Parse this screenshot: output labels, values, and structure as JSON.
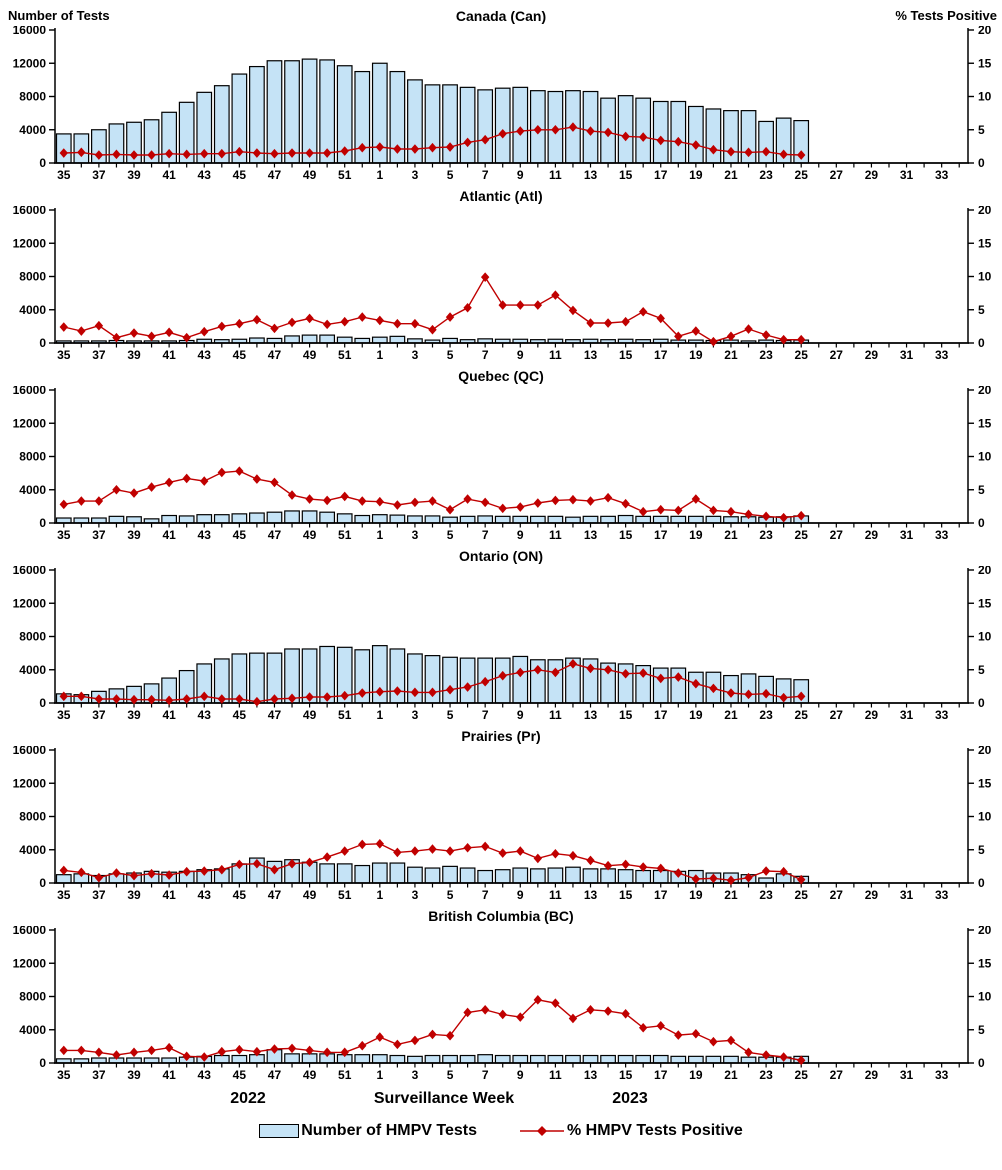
{
  "header": {
    "left_axis_title": "Number of Tests",
    "right_axis_title": "% Tests Positive"
  },
  "footer": {
    "year_left": "2022",
    "axis_title": "Surveillance Week",
    "year_right": "2023",
    "legend_tests_label": "Number of HMPV Tests",
    "legend_pct_label": "% HMPV Tests Positive"
  },
  "colors": {
    "bar_fill": "#C5E3F6",
    "bar_stroke": "#000000",
    "line": "#C00000",
    "axis": "#000000"
  },
  "chart_data": {
    "type": "bar+line",
    "x_axis_label": "Surveillance Week",
    "weeks_total": 52,
    "categories": [
      "35",
      "36",
      "37",
      "38",
      "39",
      "40",
      "41",
      "42",
      "43",
      "44",
      "45",
      "46",
      "47",
      "48",
      "49",
      "50",
      "51",
      "52",
      "1",
      "2",
      "3",
      "4",
      "5",
      "6",
      "7",
      "8",
      "9",
      "10",
      "11",
      "12",
      "13",
      "14",
      "15",
      "16",
      "17",
      "18",
      "19",
      "20",
      "21",
      "22",
      "23",
      "24",
      "25"
    ],
    "x_tick_labels": [
      "35",
      "37",
      "39",
      "41",
      "43",
      "45",
      "47",
      "49",
      "51",
      "1",
      "3",
      "5",
      "7",
      "9",
      "11",
      "13",
      "15",
      "17",
      "19",
      "21",
      "23",
      "25",
      "27",
      "29",
      "31",
      "33"
    ],
    "left_axis": {
      "title": "Number of Tests",
      "ticks": [
        0,
        4000,
        8000,
        12000,
        16000
      ],
      "max": 16000
    },
    "right_axis": {
      "title": "% Tests Positive",
      "ticks": [
        0,
        5,
        10,
        15,
        20
      ],
      "max": 20
    },
    "series_names": [
      "Number of HMPV Tests",
      "% HMPV Tests Positive"
    ],
    "panels": [
      {
        "title": "Canada (Can)",
        "tests": [
          3500,
          3500,
          4000,
          4700,
          4900,
          5200,
          6100,
          7300,
          8500,
          9300,
          10700,
          11600,
          12300,
          12300,
          12500,
          12400,
          11700,
          11000,
          12000,
          11000,
          10000,
          9400,
          9400,
          9100,
          8800,
          9000,
          9100,
          8700,
          8600,
          8700,
          8600,
          7800,
          8100,
          7800,
          7400,
          7400,
          6800,
          6500,
          6300,
          6300,
          5000,
          5400,
          5100
        ],
        "pct_positive": [
          1.5,
          1.6,
          1.2,
          1.3,
          1.2,
          1.2,
          1.4,
          1.3,
          1.4,
          1.4,
          1.7,
          1.5,
          1.4,
          1.5,
          1.5,
          1.5,
          1.8,
          2.3,
          2.4,
          2.1,
          2.1,
          2.3,
          2.4,
          3.1,
          3.5,
          4.4,
          4.8,
          5.0,
          5.0,
          5.4,
          4.8,
          4.6,
          4.0,
          3.9,
          3.4,
          3.2,
          2.7,
          2.0,
          1.7,
          1.6,
          1.7,
          1.3,
          1.2
        ]
      },
      {
        "title": "Atlantic (Atl)",
        "tests": [
          250,
          250,
          250,
          300,
          250,
          250,
          250,
          300,
          450,
          400,
          450,
          600,
          550,
          850,
          950,
          950,
          700,
          550,
          700,
          800,
          500,
          350,
          550,
          400,
          500,
          450,
          450,
          400,
          450,
          400,
          450,
          400,
          450,
          400,
          450,
          350,
          350,
          300,
          350,
          250,
          350,
          300,
          350
        ],
        "pct_positive": [
          2.4,
          1.8,
          2.6,
          0.8,
          1.5,
          1.0,
          1.6,
          0.8,
          1.7,
          2.5,
          2.9,
          3.5,
          2.2,
          3.1,
          3.7,
          2.8,
          3.2,
          3.9,
          3.4,
          2.9,
          2.9,
          2.0,
          3.9,
          5.3,
          9.9,
          5.7,
          5.7,
          5.7,
          7.2,
          4.9,
          3.0,
          3.0,
          3.2,
          4.7,
          3.7,
          1.0,
          1.8,
          0.2,
          1.0,
          2.1,
          1.2,
          0.5,
          0.5
        ]
      },
      {
        "title": "Quebec (QC)",
        "tests": [
          600,
          600,
          600,
          800,
          750,
          500,
          900,
          850,
          1000,
          1000,
          1100,
          1200,
          1300,
          1450,
          1450,
          1300,
          1100,
          900,
          1000,
          950,
          850,
          850,
          700,
          800,
          850,
          800,
          800,
          800,
          800,
          700,
          800,
          800,
          900,
          800,
          800,
          800,
          800,
          800,
          750,
          750,
          700,
          750,
          850
        ],
        "pct_positive": [
          2.8,
          3.3,
          3.3,
          5.0,
          4.5,
          5.4,
          6.1,
          6.7,
          6.3,
          7.6,
          7.8,
          6.6,
          6.1,
          4.2,
          3.6,
          3.4,
          4.0,
          3.3,
          3.2,
          2.7,
          3.1,
          3.3,
          2.0,
          3.6,
          3.1,
          2.2,
          2.4,
          3.0,
          3.4,
          3.5,
          3.3,
          3.8,
          2.9,
          1.7,
          2.0,
          1.9,
          3.6,
          1.9,
          1.7,
          1.3,
          1.0,
          0.8,
          1.1
        ]
      },
      {
        "title": "Ontario (ON)",
        "tests": [
          1100,
          1000,
          1400,
          1700,
          2000,
          2300,
          3000,
          3900,
          4700,
          5300,
          5900,
          6000,
          6000,
          6500,
          6500,
          6800,
          6700,
          6400,
          6900,
          6500,
          5900,
          5700,
          5500,
          5400,
          5400,
          5400,
          5600,
          5200,
          5200,
          5400,
          5300,
          4800,
          4700,
          4500,
          4200,
          4200,
          3700,
          3700,
          3300,
          3500,
          3200,
          2900,
          2800
        ],
        "pct_positive": [
          1.0,
          1.0,
          0.6,
          0.6,
          0.5,
          0.5,
          0.4,
          0.6,
          1.0,
          0.6,
          0.6,
          0.2,
          0.6,
          0.7,
          0.9,
          0.9,
          1.1,
          1.5,
          1.7,
          1.8,
          1.6,
          1.6,
          2.0,
          2.4,
          3.2,
          4.1,
          4.6,
          5.0,
          4.6,
          5.9,
          5.2,
          5.0,
          4.4,
          4.5,
          3.7,
          3.9,
          2.9,
          2.2,
          1.5,
          1.3,
          1.4,
          0.8,
          1.0
        ]
      },
      {
        "title": "Prairies (Pr)",
        "tests": [
          1000,
          1100,
          900,
          1100,
          1200,
          1400,
          1300,
          1400,
          1600,
          1700,
          2300,
          3000,
          2600,
          2800,
          2500,
          2300,
          2300,
          2100,
          2400,
          2400,
          1900,
          1800,
          2000,
          1800,
          1500,
          1600,
          1800,
          1700,
          1800,
          1900,
          1700,
          1700,
          1600,
          1500,
          1500,
          1400,
          1500,
          1200,
          1200,
          1000,
          600,
          1100,
          800
        ],
        "pct_positive": [
          1.9,
          1.6,
          0.8,
          1.5,
          1.1,
          1.4,
          1.2,
          1.7,
          1.8,
          2.0,
          2.8,
          2.9,
          2.0,
          2.9,
          3.1,
          3.9,
          4.8,
          5.8,
          5.9,
          4.6,
          4.8,
          5.1,
          4.8,
          5.3,
          5.5,
          4.5,
          4.8,
          3.7,
          4.4,
          4.1,
          3.4,
          2.6,
          2.8,
          2.4,
          2.2,
          1.5,
          0.6,
          0.7,
          0.4,
          0.8,
          1.8,
          1.7,
          0.5
        ]
      },
      {
        "title": "British Columbia (BC)",
        "tests": [
          500,
          500,
          600,
          600,
          600,
          600,
          600,
          700,
          800,
          900,
          900,
          1000,
          1600,
          1100,
          1100,
          1100,
          1000,
          1000,
          1000,
          900,
          800,
          900,
          900,
          900,
          1000,
          900,
          900,
          900,
          900,
          900,
          900,
          900,
          900,
          900,
          900,
          800,
          800,
          800,
          800,
          700,
          700,
          700,
          800
        ],
        "pct_positive": [
          1.9,
          1.9,
          1.6,
          1.2,
          1.6,
          1.9,
          2.3,
          1.0,
          0.9,
          1.7,
          2.0,
          1.7,
          2.1,
          2.2,
          1.9,
          1.6,
          1.6,
          2.6,
          3.9,
          2.8,
          3.4,
          4.3,
          4.1,
          7.6,
          8.0,
          7.3,
          6.9,
          9.5,
          9.0,
          6.7,
          8.0,
          7.8,
          7.4,
          5.3,
          5.6,
          4.2,
          4.4,
          3.2,
          3.4,
          1.6,
          1.2,
          0.9,
          0.4
        ]
      }
    ]
  }
}
